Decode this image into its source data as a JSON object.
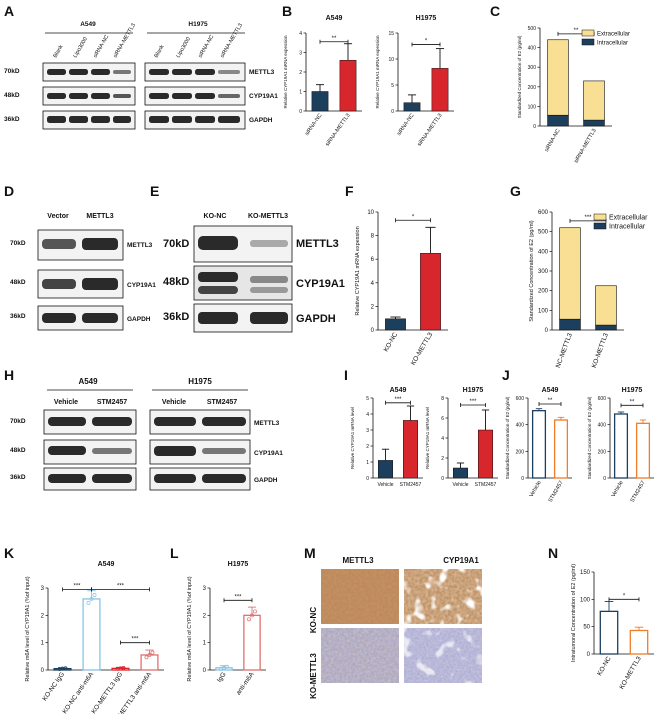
{
  "panels": {
    "A": {
      "label": "A",
      "groups": [
        "A549",
        "H1975"
      ],
      "lanes": [
        "Blank",
        "Lipo3000",
        "siRNA-NC",
        "siRNA-METTL3"
      ],
      "mw": [
        "70kD",
        "48kD",
        "36kD"
      ],
      "proteins": [
        "METTL3",
        "CYP19A1",
        "GAPDH"
      ]
    },
    "B": {
      "label": "B",
      "sig": [
        "**",
        "*"
      ]
    },
    "C": {
      "label": "C",
      "legend": [
        "Extracellular",
        "Intracellular"
      ],
      "sig": "**"
    },
    "D": {
      "label": "D",
      "lanes": [
        "Vector",
        "METTL3"
      ],
      "mw": [
        "70kD",
        "48kD",
        "36kD"
      ],
      "proteins": [
        "METTL3",
        "CYP19A1",
        "GAPDH"
      ]
    },
    "E": {
      "label": "E",
      "lanes": [
        "KO-NC",
        "KO-METTL3"
      ],
      "mw": [
        "70kD",
        "48kD",
        "36kD"
      ],
      "proteins": [
        "METTL3",
        "CYP19A1",
        "GAPDH"
      ]
    },
    "F": {
      "label": "F",
      "sig": "*"
    },
    "G": {
      "label": "G",
      "legend": [
        "Extracellular",
        "Intracellular"
      ],
      "sig": "***"
    },
    "H": {
      "label": "H",
      "groups": [
        "A549",
        "H1975"
      ],
      "lanes": [
        "Vehicle",
        "STM2457"
      ],
      "mw": [
        "70kD",
        "48kD",
        "36kD"
      ],
      "proteins": [
        "METTL3",
        "CYP19A1",
        "GAPDH"
      ]
    },
    "I": {
      "label": "I",
      "sig": [
        "***",
        "***"
      ]
    },
    "J": {
      "label": "J",
      "sig": [
        "**",
        "**"
      ]
    },
    "K": {
      "label": "K",
      "sig": [
        "***",
        "***",
        "***"
      ]
    },
    "L": {
      "label": "L",
      "sig": "***"
    },
    "M": {
      "label": "M",
      "cols": [
        "METTL3",
        "CYP19A1"
      ],
      "rows": [
        "KO-NC",
        "KO-METTL3"
      ]
    },
    "N": {
      "label": "N",
      "sig": "*"
    }
  },
  "chart_data": [
    {
      "id": "B1",
      "type": "bar",
      "title": "A549",
      "ylabel": "Relative CYP19A1 mRNA expession",
      "categories": [
        "siRNA-NC",
        "siRNA-METTL3"
      ],
      "values": [
        1.0,
        2.6
      ],
      "errors": [
        0.35,
        0.85
      ],
      "yticks": [
        0,
        1,
        2,
        3,
        4
      ],
      "ylim": [
        0,
        4
      ],
      "colors": [
        "#1d3f5e",
        "#d8262d"
      ]
    },
    {
      "id": "B2",
      "type": "bar",
      "title": "H1975",
      "ylabel": "Relative CYP19A1 mRNA expession",
      "categories": [
        "siRNA-NC",
        "siRNA-METTL3"
      ],
      "values": [
        1.6,
        8.2
      ],
      "errors": [
        1.5,
        3.8
      ],
      "yticks": [
        0,
        5,
        10,
        15
      ],
      "ylim": [
        0,
        15
      ],
      "colors": [
        "#1d3f5e",
        "#d8262d"
      ]
    },
    {
      "id": "C",
      "type": "bar",
      "stacked": true,
      "ylabel": "Standardized Concentration of E2 (pg/ml)",
      "categories": [
        "siRNA-NC",
        "siRNA-METTL3"
      ],
      "series": [
        {
          "name": "Intracellular",
          "values": [
            55,
            30
          ],
          "color": "#1d3f5e"
        },
        {
          "name": "Extracellular",
          "values": [
            385,
            200
          ],
          "color": "#f8df94"
        }
      ],
      "yticks": [
        0,
        100,
        200,
        300,
        400,
        500
      ],
      "ylim": [
        0,
        500
      ]
    },
    {
      "id": "F",
      "type": "bar",
      "ylabel": "Relative CYP19A1 mRNA expession",
      "categories": [
        "KO-NC",
        "KO-METTL3"
      ],
      "values": [
        0.95,
        6.5
      ],
      "errors": [
        0.15,
        2.2
      ],
      "yticks": [
        0,
        2,
        4,
        6,
        8,
        10
      ],
      "ylim": [
        0,
        10
      ],
      "colors": [
        "#1d3f5e",
        "#d8262d"
      ]
    },
    {
      "id": "G",
      "type": "bar",
      "stacked": true,
      "ylabel": "Standardized Concentration of E2 (pg/ml)",
      "categories": [
        "NC-METTL3",
        "KO-METTL3"
      ],
      "series": [
        {
          "name": "Intracellular",
          "values": [
            55,
            25
          ],
          "color": "#1d3f5e"
        },
        {
          "name": "Extracellular",
          "values": [
            465,
            200
          ],
          "color": "#f8df94"
        }
      ],
      "yticks": [
        0,
        100,
        200,
        300,
        400,
        500,
        600
      ],
      "ylim": [
        0,
        600
      ]
    },
    {
      "id": "I1",
      "type": "bar",
      "title": "A549",
      "ylabel": "Relative CYP19A1 mRNA level",
      "categories": [
        "Vehicle",
        "STM2457"
      ],
      "values": [
        1.1,
        3.6
      ],
      "errors": [
        0.7,
        0.9
      ],
      "yticks": [
        0,
        1,
        2,
        3,
        4,
        5
      ],
      "ylim": [
        0,
        5
      ],
      "colors": [
        "#1d3f5e",
        "#d8262d"
      ]
    },
    {
      "id": "I2",
      "type": "bar",
      "title": "H1975",
      "ylabel": "Relative CYP19A1 mRNA level",
      "categories": [
        "Vehicle",
        "STM2457"
      ],
      "values": [
        1.0,
        4.8
      ],
      "errors": [
        0.5,
        2.0
      ],
      "yticks": [
        0,
        2,
        4,
        6,
        8
      ],
      "ylim": [
        0,
        8
      ],
      "colors": [
        "#1d3f5e",
        "#d8262d"
      ]
    },
    {
      "id": "J1",
      "type": "bar",
      "title": "A549",
      "hollow": true,
      "ylabel": "Standardized Concentration of E2 (pg/ml)",
      "categories": [
        "Vehicle",
        "STM2457"
      ],
      "values": [
        505,
        435
      ],
      "errors": [
        15,
        20
      ],
      "yticks": [
        0,
        200,
        400,
        600
      ],
      "ylim": [
        0,
        600
      ],
      "colors": [
        "#1d3f5e",
        "#ef7d2a"
      ]
    },
    {
      "id": "J2",
      "type": "bar",
      "title": "H1975",
      "hollow": true,
      "ylabel": "Standardized Concentration of E2 (pg/ml)",
      "categories": [
        "Vehicle",
        "STM2457"
      ],
      "values": [
        480,
        410
      ],
      "errors": [
        15,
        25
      ],
      "yticks": [
        0,
        200,
        400,
        600
      ],
      "ylim": [
        0,
        600
      ],
      "colors": [
        "#1d3f5e",
        "#ef7d2a"
      ]
    },
    {
      "id": "K",
      "type": "bar",
      "title": "A549",
      "hollow": true,
      "ylabel": "Relative m6A level of CYP19A1 (%of input)",
      "categories": [
        "KO-NC IgG",
        "KO-NC anti-m6A",
        "KO-METTL3 IgG",
        "KO-METTL3 anti-m6A"
      ],
      "values": [
        0.05,
        2.6,
        0.06,
        0.55
      ],
      "errors": [
        0.02,
        0.3,
        0.03,
        0.18
      ],
      "yticks": [
        0,
        1,
        2,
        3
      ],
      "ylim": [
        0,
        3
      ],
      "colors": [
        "#1d3f5e",
        "#88c4e6",
        "#d8262d",
        "#e07070"
      ]
    },
    {
      "id": "L",
      "type": "bar",
      "title": "H1975",
      "hollow": true,
      "ylabel": "Relative m6A level of CYP19A1 (%of input)",
      "categories": [
        "IgG",
        "anti-m6A"
      ],
      "values": [
        0.08,
        2.0
      ],
      "errors": [
        0.08,
        0.3
      ],
      "yticks": [
        0,
        1,
        2,
        3
      ],
      "ylim": [
        0,
        3
      ],
      "colors": [
        "#88c4e6",
        "#e07070"
      ]
    },
    {
      "id": "N",
      "type": "bar",
      "hollow": true,
      "ylabel": "Intratumoral Concentration of E2 (pg/ml)",
      "categories": [
        "KO-NC",
        "KO-METTL3"
      ],
      "values": [
        78,
        43
      ],
      "errors": [
        18,
        6
      ],
      "yticks": [
        0,
        50,
        100,
        150
      ],
      "ylim": [
        0,
        150
      ],
      "colors": [
        "#1d3f5e",
        "#ef7d2a"
      ]
    }
  ]
}
